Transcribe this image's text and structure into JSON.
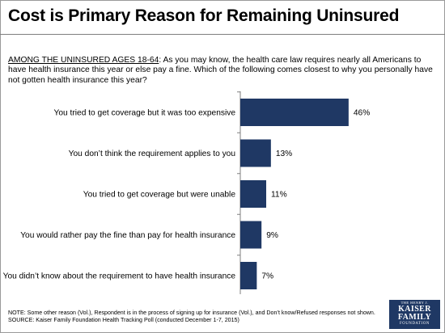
{
  "title": "Cost is Primary Reason for Remaining Uninsured",
  "question": {
    "prefix": "AMONG THE UNINSURED AGES 18-64",
    "text": ": As you may know, the health care law requires nearly all Americans to have health insurance this year or else pay a fine. Which of the following comes closest to why you personally have not gotten health insurance this year?"
  },
  "chart_data": {
    "type": "bar",
    "orientation": "horizontal",
    "categories": [
      "You tried to get coverage but it was too expensive",
      "You don’t think the requirement applies to you",
      "You tried to get coverage but were unable",
      "You would rather pay the fine than pay for health insurance",
      "You didn’t know about the requirement to have health insurance"
    ],
    "values": [
      46,
      13,
      11,
      9,
      7
    ],
    "data_labels": [
      "46%",
      "13%",
      "11%",
      "9%",
      "7%"
    ],
    "value_unit": "%",
    "xlim": [
      0,
      50
    ],
    "bar_color": "#1f3864",
    "grid": false,
    "legend": "none"
  },
  "footer": {
    "note": "NOTE: Some other reason (Vol.), Respondent is in the process of signing up for insurance (Vol.), and Don’t know/Refused responses not shown.",
    "source": "SOURCE: Kaiser Family Foundation Health Tracking Poll (conducted December 1-7, 2015)"
  },
  "logo": {
    "line1": "THE HENRY J.",
    "line2a": "KAISER",
    "line2b": "FAMILY",
    "line3": "FOUNDATION",
    "color": "#1f3864"
  }
}
